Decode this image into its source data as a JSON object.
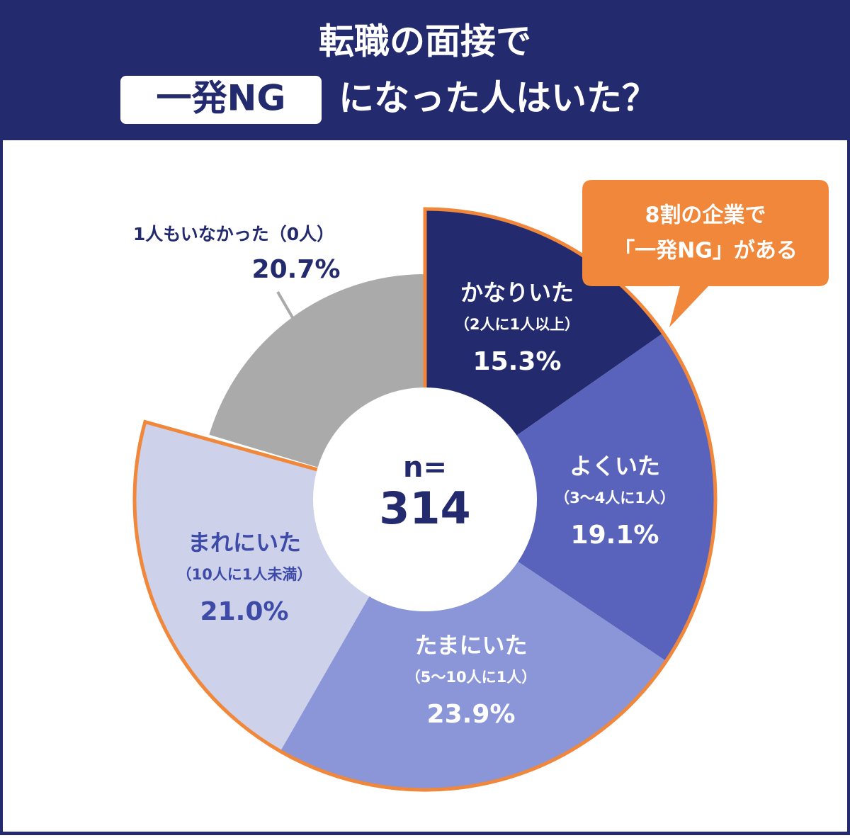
{
  "chart_data": {
    "type": "pie",
    "title_line1": "転職の面接で",
    "title_box": "一発NG",
    "title_line2": "になった人はいた？",
    "callout": [
      "8割の企業で",
      "「一発NG」がある"
    ],
    "center_label": "n=",
    "sample_size": 314,
    "categories": [
      "かなりいた",
      "よくいた",
      "たまにいた",
      "まれにいた",
      "1人もいなかった（0人）"
    ],
    "sublabels": [
      "（2人に1人以上）",
      "（3〜4人に1人）",
      "（5〜10人に1人）",
      "（10人に1人未満）",
      null
    ],
    "values": [
      15.3,
      19.1,
      23.9,
      21.0,
      20.7
    ],
    "value_labels": [
      "15.3%",
      "19.1%",
      "23.9%",
      "21.0%",
      "20.7%"
    ],
    "colors": [
      "#232a6e",
      "#5a63bb",
      "#8a96d8",
      "#cdd1ea",
      "#aaaaaa"
    ],
    "highlight_color": "#f0873a"
  }
}
